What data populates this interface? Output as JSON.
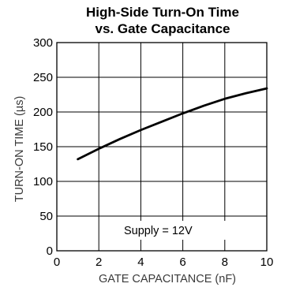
{
  "chart_data": {
    "type": "line",
    "title_line1": "High-Side Turn-On Time",
    "title_line2": "vs. Gate Capacitance",
    "xlabel": "GATE CAPACITANCE (nF)",
    "ylabel": "TURN-ON TIME (µs)",
    "xlim": [
      0,
      10
    ],
    "ylim": [
      0,
      300
    ],
    "xticks": [
      "0",
      "2",
      "4",
      "6",
      "8",
      "10"
    ],
    "yticks": [
      "0",
      "50",
      "100",
      "150",
      "200",
      "250",
      "300"
    ],
    "grid": true,
    "annotation": "Supply = 12V",
    "series": [
      {
        "x": [
          1,
          2,
          3,
          4,
          5,
          6,
          7,
          8,
          9,
          10
        ],
        "y": [
          132,
          147,
          161,
          174,
          186,
          198,
          209,
          219,
          227,
          234
        ]
      }
    ]
  }
}
